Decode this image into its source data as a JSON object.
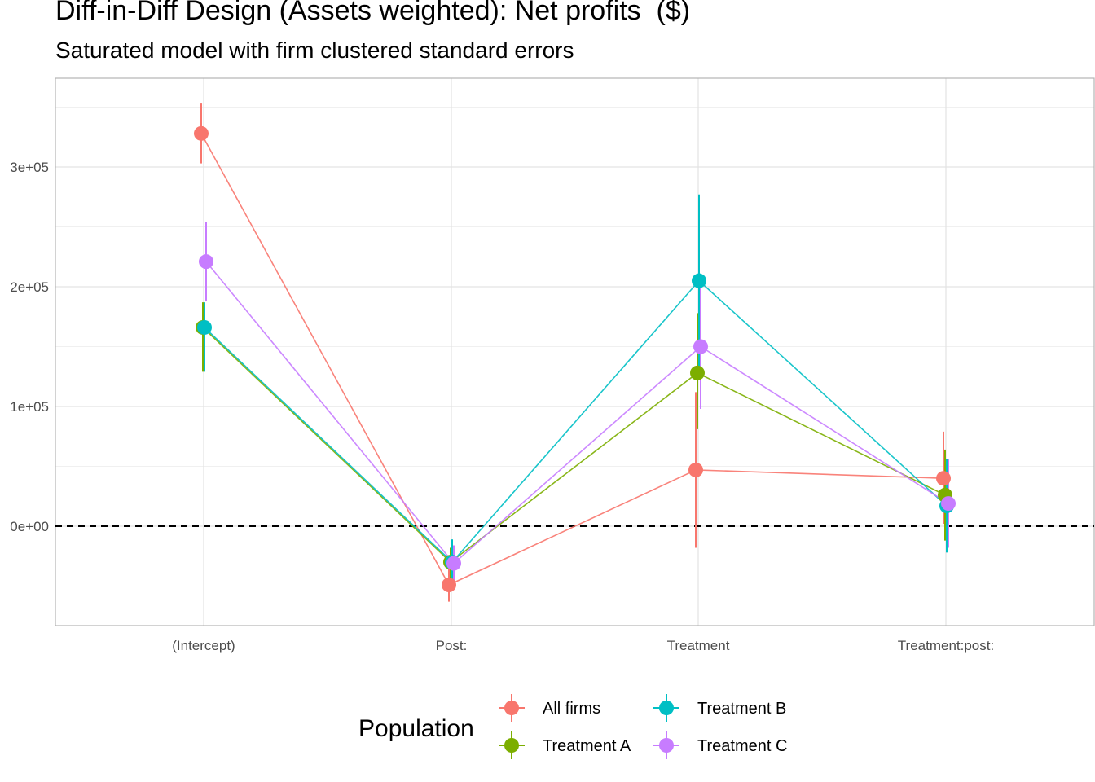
{
  "title": "Diff-in-Diff Design (Assets weighted): Net profits  ($)",
  "subtitle": "Saturated model with firm clustered standard errors",
  "chart_data": {
    "type": "line",
    "categories": [
      "(Intercept)",
      "Post:",
      "Treatment",
      "Treatment:post:"
    ],
    "xlabel": "",
    "ylabel": "",
    "ylim": [
      -82000,
      374000
    ],
    "y_ticks": [
      0,
      100000,
      200000,
      300000
    ],
    "y_tick_labels": [
      "0e+00",
      "1e+05",
      "2e+05",
      "3e+05"
    ],
    "reference_line": {
      "y": 0,
      "style": "dashed"
    },
    "grid": true,
    "legend": {
      "title": "Population",
      "position": "bottom"
    },
    "series": [
      {
        "name": "All firms",
        "color": "#F8766D",
        "values": [
          328000,
          -49000,
          47000,
          40000
        ],
        "lower": [
          303000,
          -63000,
          -18000,
          2000
        ],
        "upper": [
          353000,
          -35000,
          112000,
          79000
        ]
      },
      {
        "name": "Treatment A",
        "color": "#7CAE00",
        "values": [
          166000,
          -30000,
          128000,
          26000
        ],
        "lower": [
          129000,
          -43000,
          81000,
          -12000
        ],
        "upper": [
          187000,
          -18000,
          178000,
          64000
        ]
      },
      {
        "name": "Treatment B",
        "color": "#00BFC4",
        "values": [
          166000,
          -30000,
          205000,
          17000
        ],
        "lower": [
          129000,
          -45000,
          132000,
          -22000
        ],
        "upper": [
          187000,
          -11000,
          277000,
          56000
        ]
      },
      {
        "name": "Treatment C",
        "color": "#C77CFF",
        "values": [
          221000,
          -31000,
          150000,
          19000
        ],
        "lower": [
          188000,
          -46000,
          98000,
          -18000
        ],
        "upper": [
          254000,
          -16000,
          202000,
          56000
        ]
      }
    ]
  }
}
